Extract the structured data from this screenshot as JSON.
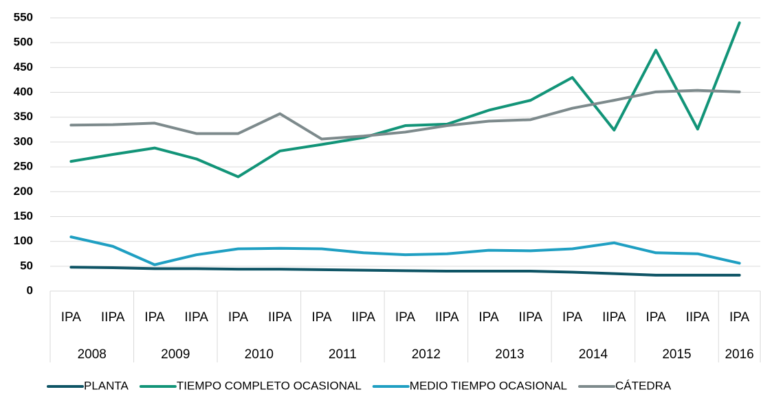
{
  "chart_data": {
    "type": "line",
    "groups": [
      {
        "label": "2008",
        "categories": [
          "IPA",
          "IIPA"
        ]
      },
      {
        "label": "2009",
        "categories": [
          "IPA",
          "IIPA"
        ]
      },
      {
        "label": "2010",
        "categories": [
          "IPA",
          "IIPA"
        ]
      },
      {
        "label": "2011",
        "categories": [
          "IPA",
          "IIPA"
        ]
      },
      {
        "label": "2012",
        "categories": [
          "IPA",
          "IIPA"
        ]
      },
      {
        "label": "2013",
        "categories": [
          "IPA",
          "IIPA"
        ]
      },
      {
        "label": "2014",
        "categories": [
          "IPA",
          "IIPA"
        ]
      },
      {
        "label": "2015",
        "categories": [
          "IPA",
          "IIPA"
        ]
      },
      {
        "label": "2016",
        "categories": [
          "IPA"
        ]
      }
    ],
    "series": [
      {
        "name": "PLANTA",
        "color": "#0e5465",
        "values": [
          48,
          47,
          45,
          45,
          44,
          44,
          43,
          42,
          41,
          40,
          40,
          40,
          38,
          35,
          32,
          32,
          32
        ]
      },
      {
        "name": "TIEMPO COMPLETO OCASIONAL",
        "color": "#129478",
        "values": [
          261,
          275,
          288,
          266,
          230,
          282,
          295,
          309,
          333,
          336,
          364,
          384,
          430,
          324,
          485,
          326,
          540
        ]
      },
      {
        "name": "MEDIO TIEMPO OCASIONAL",
        "color": "#1f9fc2",
        "values": [
          109,
          90,
          53,
          73,
          85,
          86,
          85,
          77,
          73,
          75,
          82,
          81,
          85,
          97,
          77,
          75,
          56
        ]
      },
      {
        "name": "CÁTEDRA",
        "color": "#7d8a8c",
        "values": [
          334,
          335,
          338,
          317,
          317,
          357,
          306,
          312,
          320,
          333,
          342,
          345,
          368,
          384,
          401,
          404,
          401
        ]
      }
    ],
    "ylim": [
      0,
      550
    ],
    "yticks": [
      0,
      50,
      100,
      150,
      200,
      250,
      300,
      350,
      400,
      450,
      500,
      550
    ],
    "grid": true,
    "legend": "bottom"
  }
}
